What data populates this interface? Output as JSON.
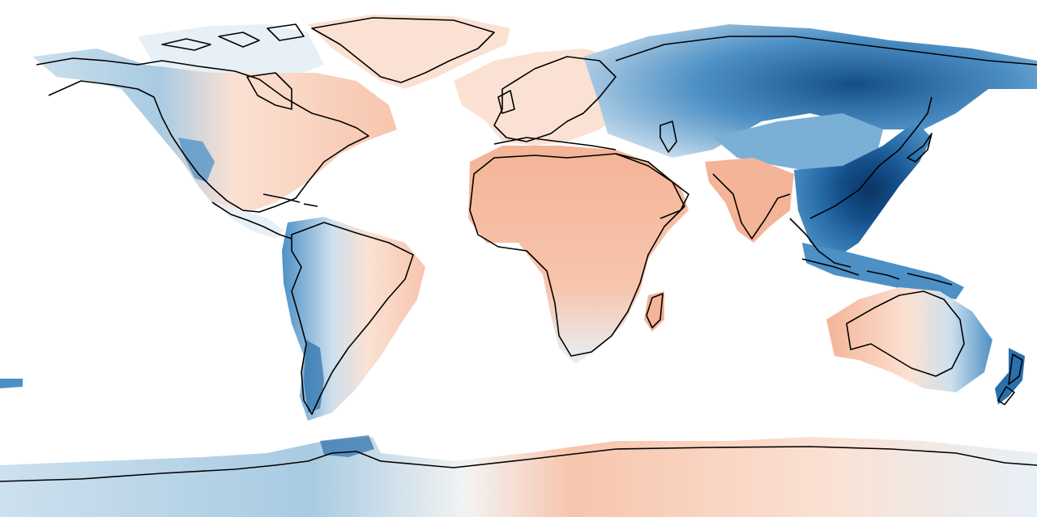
{
  "map": {
    "projection": "plate-carree",
    "coastlines": "black",
    "diverging_colormap": {
      "positive": [
        "#fbe1d3",
        "#f7c5ad",
        "#f4b497"
      ],
      "neutral": "#f3f3f3",
      "negative": [
        "#e7f0f7",
        "#cde0ee",
        "#a8cbe2",
        "#7bb0d6",
        "#4d90c5",
        "#2a6fab",
        "#144e89",
        "#0a3563"
      ]
    },
    "regions": [
      {
        "name": "east-asia",
        "sign": "negative",
        "level": 8
      },
      {
        "name": "siberia",
        "sign": "negative",
        "level": 6
      },
      {
        "name": "tibetan-plateau",
        "sign": "negative",
        "level": 4
      },
      {
        "name": "maritime-continent",
        "sign": "negative",
        "level": 6
      },
      {
        "name": "western-north-america",
        "sign": "negative",
        "level": 3
      },
      {
        "name": "andes",
        "sign": "negative",
        "level": 4
      },
      {
        "name": "west-antarctica",
        "sign": "negative",
        "level": 4
      },
      {
        "name": "new-zealand",
        "sign": "negative",
        "level": 5
      },
      {
        "name": "eastern-australia",
        "sign": "negative",
        "level": 3
      },
      {
        "name": "africa",
        "sign": "positive",
        "level": 2
      },
      {
        "name": "arabia",
        "sign": "positive",
        "level": 2
      },
      {
        "name": "india",
        "sign": "positive",
        "level": 2
      },
      {
        "name": "greenland",
        "sign": "positive",
        "level": 1
      },
      {
        "name": "eastern-north-america",
        "sign": "positive",
        "level": 1
      },
      {
        "name": "europe",
        "sign": "positive",
        "level": 1
      },
      {
        "name": "eastern-brazil",
        "sign": "positive",
        "level": 1
      },
      {
        "name": "western-australia",
        "sign": "positive",
        "level": 2
      },
      {
        "name": "east-antarctica",
        "sign": "positive",
        "level": 1
      }
    ]
  }
}
